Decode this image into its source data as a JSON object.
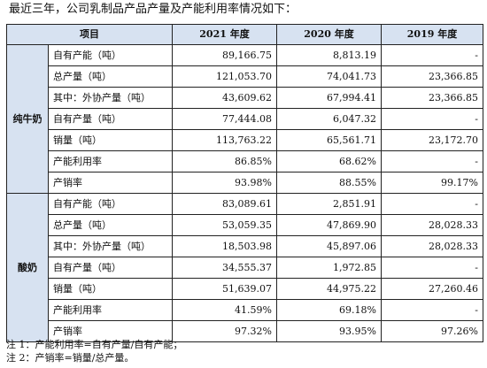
{
  "intro": "最近三年，公司乳制品产品产量及产能利用率情况如下：",
  "table": {
    "headers": [
      "项目",
      "2021 年度",
      "2020 年度",
      "2019 年度"
    ],
    "groups": [
      {
        "name": "纯牛奶",
        "rows": [
          {
            "item": "自有产能（吨）",
            "v2021": "89,166.75",
            "v2020": "8,813.19",
            "v2019": "-"
          },
          {
            "item": "总产量（吨）",
            "v2021": "121,053.70",
            "v2020": "74,041.73",
            "v2019": "23,366.85"
          },
          {
            "item": "其中：外协产量（吨）",
            "v2021": "43,609.62",
            "v2020": "67,994.41",
            "v2019": "23,366.85"
          },
          {
            "item": "自有产量（吨）",
            "v2021": "77,444.08",
            "v2020": "6,047.32",
            "v2019": "-"
          },
          {
            "item": "销量（吨）",
            "v2021": "113,763.22",
            "v2020": "65,561.71",
            "v2019": "23,172.70"
          },
          {
            "item": "产能利用率",
            "v2021": "86.85%",
            "v2020": "68.62%",
            "v2019": "-"
          },
          {
            "item": "产销率",
            "v2021": "93.98%",
            "v2020": "88.55%",
            "v2019": "99.17%"
          }
        ]
      },
      {
        "name": "酸奶",
        "rows": [
          {
            "item": "自有产能（吨）",
            "v2021": "83,089.61",
            "v2020": "2,851.91",
            "v2019": "-"
          },
          {
            "item": "总产量（吨）",
            "v2021": "53,059.35",
            "v2020": "47,869.90",
            "v2019": "28,028.33"
          },
          {
            "item": "其中：外协产量（吨）",
            "v2021": "18,503.98",
            "v2020": "45,897.06",
            "v2019": "28,028.33"
          },
          {
            "item": "自有产量（吨）",
            "v2021": "34,555.37",
            "v2020": "1,972.85",
            "v2019": "-"
          },
          {
            "item": "销量（吨）",
            "v2021": "51,639.07",
            "v2020": "44,975.22",
            "v2019": "27,260.46"
          },
          {
            "item": "产能利用率",
            "v2021": "41.59%",
            "v2020": "69.18%",
            "v2019": "-"
          },
          {
            "item": "产销率",
            "v2021": "97.32%",
            "v2020": "93.95%",
            "v2019": "97.26%"
          }
        ]
      }
    ]
  },
  "notes": [
    "注 1：产能利用率=自有产量/自有产能；",
    "注 2：产销率=销量/总产量。"
  ]
}
